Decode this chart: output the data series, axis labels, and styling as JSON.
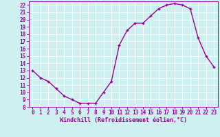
{
  "x": [
    0,
    1,
    2,
    3,
    4,
    5,
    6,
    7,
    8,
    9,
    10,
    11,
    12,
    13,
    14,
    15,
    16,
    17,
    18,
    19,
    20,
    21,
    22,
    23
  ],
  "y": [
    13,
    12,
    11.5,
    10.5,
    9.5,
    9,
    8.5,
    8.5,
    8.5,
    10,
    11.5,
    16.5,
    18.5,
    19.5,
    19.5,
    20.5,
    21.5,
    22,
    22.2,
    22,
    21.5,
    17.5,
    15,
    13.5
  ],
  "line_color": "#990099",
  "marker": "+",
  "marker_size": 3.5,
  "marker_lw": 1.0,
  "bg_color": "#cff0f0",
  "grid_color": "#ffffff",
  "xlabel": "Windchill (Refroidissement éolien,°C)",
  "xlabel_color": "#990099",
  "tick_color": "#990099",
  "ylim": [
    8,
    22.5
  ],
  "xlim": [
    -0.5,
    23.5
  ],
  "yticks": [
    8,
    9,
    10,
    11,
    12,
    13,
    14,
    15,
    16,
    17,
    18,
    19,
    20,
    21,
    22
  ],
  "xticks": [
    0,
    1,
    2,
    3,
    4,
    5,
    6,
    7,
    8,
    9,
    10,
    11,
    12,
    13,
    14,
    15,
    16,
    17,
    18,
    19,
    20,
    21,
    22,
    23
  ],
  "line_width": 1.0,
  "font_size": 5.5,
  "xlabel_fontsize": 6.0
}
